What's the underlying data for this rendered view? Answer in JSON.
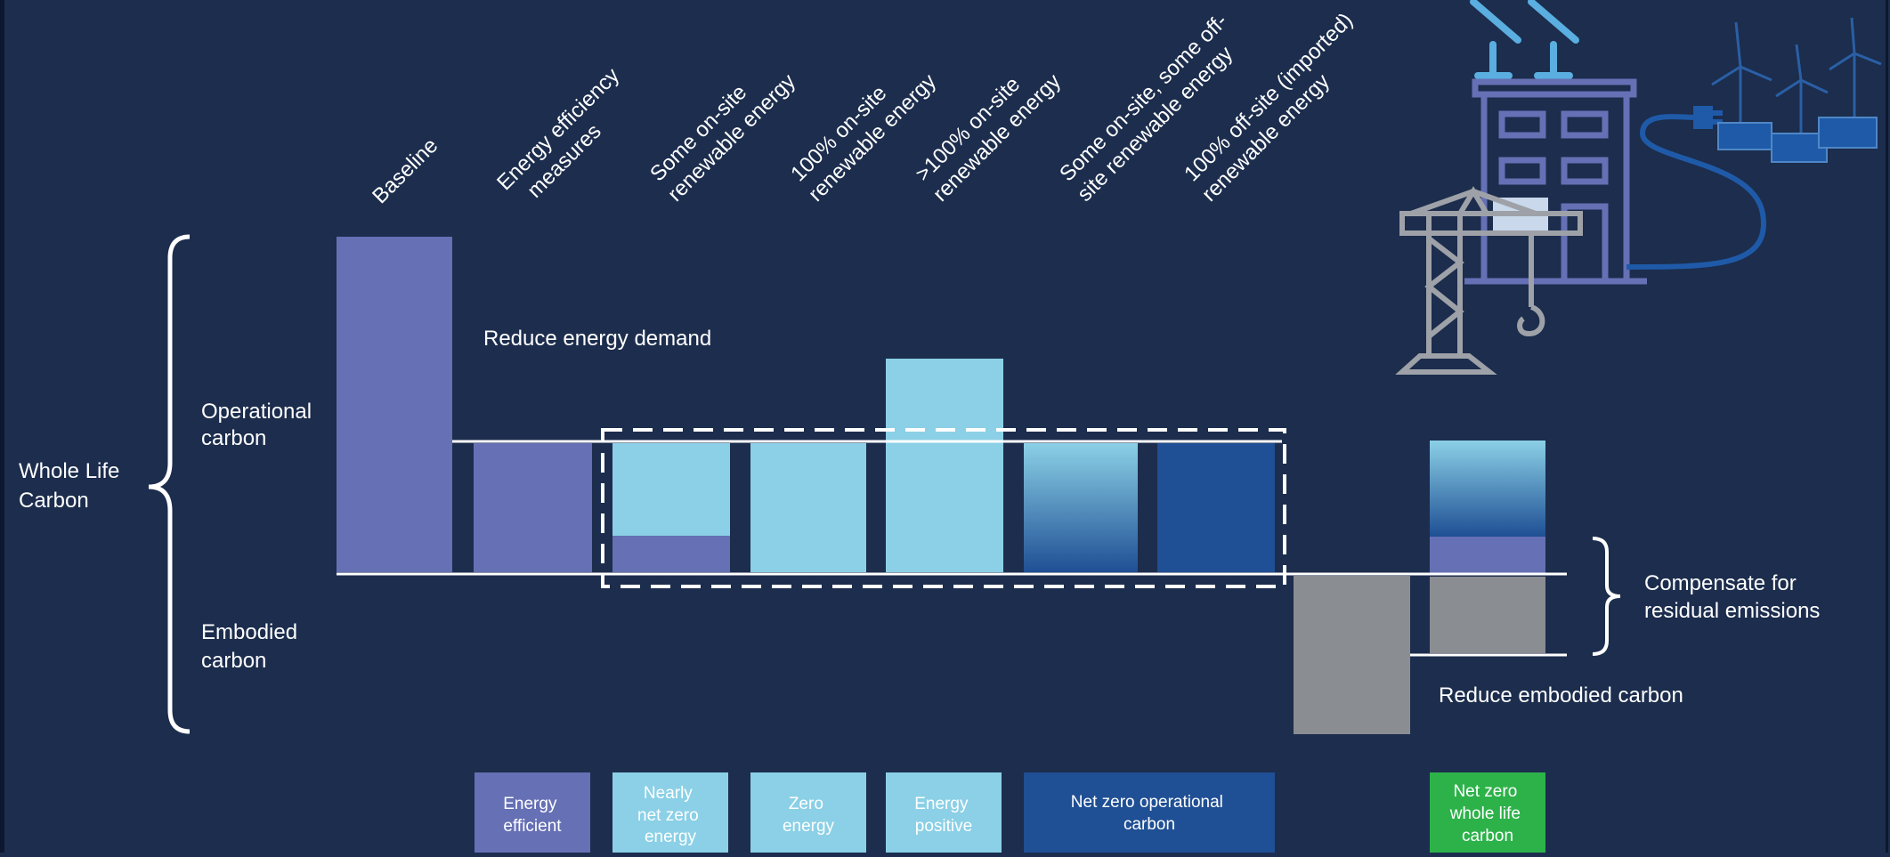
{
  "column_headers": [
    {
      "id": "baseline",
      "lines": [
        "Baseline"
      ]
    },
    {
      "id": "efficiency",
      "lines": [
        "Energy efficiency",
        "measures"
      ]
    },
    {
      "id": "some-onsite",
      "lines": [
        "Some on-site",
        "renewable energy"
      ]
    },
    {
      "id": "100-onsite",
      "lines": [
        "100% on-site",
        "renewable energy"
      ]
    },
    {
      "id": "over100-onsite",
      "lines": [
        ">100% on-site",
        "renewable energy"
      ]
    },
    {
      "id": "mixed",
      "lines": [
        "Some on-site, some off-",
        "site renewable energy"
      ]
    },
    {
      "id": "offsite",
      "lines": [
        "100% off-site (imported)",
        "renewable energy"
      ]
    }
  ],
  "side_labels": {
    "whole_life": [
      "Whole Life",
      "Carbon"
    ],
    "operational": [
      "Operational",
      "carbon"
    ],
    "embodied": [
      "Embodied",
      "carbon"
    ]
  },
  "annotations": {
    "reduce_energy": "Reduce energy demand",
    "compensate": [
      "Compensate for",
      "residual emissions"
    ],
    "reduce_embodied": "Reduce embodied carbon"
  },
  "outcome_boxes": [
    {
      "id": "energy-efficient",
      "lines": [
        "Energy",
        "efficient"
      ],
      "color": "#6670b5"
    },
    {
      "id": "nearly-net-zero",
      "lines": [
        "Nearly",
        "net zero",
        "energy"
      ],
      "color": "#8bd0e6"
    },
    {
      "id": "zero-energy",
      "lines": [
        "Zero",
        "energy"
      ],
      "color": "#8bd0e6"
    },
    {
      "id": "energy-positive",
      "lines": [
        "Energy",
        "positive"
      ],
      "color": "#8bd0e6"
    },
    {
      "id": "net-zero-operational",
      "lines": [
        "Net zero operational",
        "carbon"
      ],
      "color": "#1f4f94"
    },
    {
      "id": "net-zero-whole-life",
      "lines": [
        "Net zero",
        "whole life",
        "carbon"
      ],
      "color": "#2db24a"
    }
  ],
  "colors": {
    "background": "#1c2d4d",
    "baseline_purple": "#6670b5",
    "renewable_light_blue": "#8bd0e6",
    "offsite_dark_blue": "#1f4f94",
    "embodied_grey": "#8a8d92",
    "net_zero_green": "#2db24a"
  },
  "icons": [
    "building-icon",
    "solar-panel-icon",
    "crane-icon",
    "power-plug-icon",
    "wind-turbine-icon"
  ]
}
